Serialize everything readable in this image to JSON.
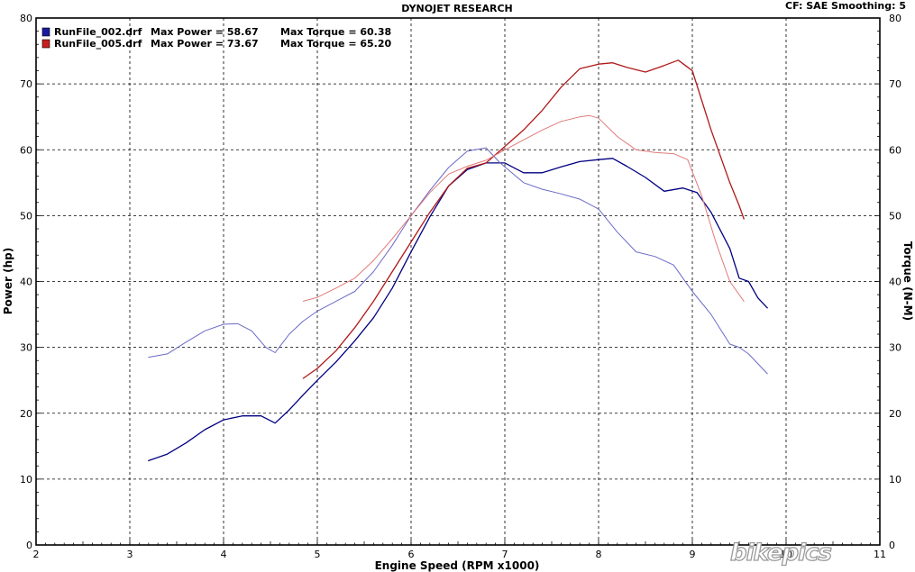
{
  "header": {
    "title": "DYNOJET RESEARCH",
    "settings": "CF: SAE  Smoothing: 5"
  },
  "colors": {
    "run1_power": "#000080",
    "run1_torque": "#6a6ac8",
    "run2_power": "#b01818",
    "run2_torque": "#e07a7a",
    "grid": "#000000",
    "frame": "#000000"
  },
  "watermark": "bikepics",
  "chart_data": {
    "type": "line",
    "xlabel": "Engine Speed (RPM x1000)",
    "ylabel": "Power (hp)",
    "y2label": "Torque (N-M)",
    "xlim": [
      2,
      11
    ],
    "ylim": [
      0,
      80
    ],
    "y2lim": [
      0,
      80
    ],
    "xticks": [
      2,
      3,
      4,
      5,
      6,
      7,
      8,
      9,
      10,
      11
    ],
    "yticks": [
      0,
      10,
      20,
      30,
      40,
      50,
      60,
      70,
      80
    ],
    "y2ticks": [
      0,
      10,
      20,
      30,
      40,
      50,
      60,
      70,
      80
    ],
    "grid": true,
    "legend_position": "top-left",
    "legend": [
      {
        "file": "RunFile_002.drf",
        "power_label": "Max Power = 58.67",
        "torque_label": "Max Torque = 60.38",
        "color": "#1a1aa0"
      },
      {
        "file": "RunFile_005.drf",
        "power_label": "Max Power = 73.67",
        "torque_label": "Max Torque = 65.20",
        "color": "#c82020"
      }
    ],
    "series": [
      {
        "name": "RunFile_002.drf Power",
        "axis": "left",
        "color": "#000080",
        "width": 1.3,
        "x": [
          3.2,
          3.4,
          3.6,
          3.8,
          4.0,
          4.2,
          4.4,
          4.55,
          4.7,
          4.85,
          5.0,
          5.2,
          5.4,
          5.6,
          5.8,
          6.0,
          6.2,
          6.4,
          6.6,
          6.8,
          7.0,
          7.2,
          7.4,
          7.6,
          7.8,
          8.0,
          8.15,
          8.3,
          8.5,
          8.7,
          8.9,
          9.05,
          9.2,
          9.4,
          9.5,
          9.6,
          9.7,
          9.8
        ],
        "y": [
          12.8,
          13.8,
          15.5,
          17.5,
          19.0,
          19.6,
          19.6,
          18.5,
          20.5,
          22.8,
          25.0,
          27.8,
          31.0,
          34.5,
          39.0,
          44.5,
          49.8,
          54.5,
          57.0,
          58.0,
          58.0,
          56.5,
          56.5,
          57.4,
          58.2,
          58.5,
          58.7,
          57.5,
          55.8,
          53.7,
          54.2,
          53.5,
          50.5,
          45.0,
          40.5,
          40.0,
          37.5,
          36.0
        ]
      },
      {
        "name": "RunFile_002.drf Torque",
        "axis": "right",
        "color": "#6a6ac8",
        "width": 1.0,
        "x": [
          3.2,
          3.4,
          3.6,
          3.8,
          4.0,
          4.15,
          4.3,
          4.45,
          4.55,
          4.7,
          4.85,
          5.0,
          5.2,
          5.4,
          5.6,
          5.8,
          6.0,
          6.2,
          6.4,
          6.6,
          6.8,
          6.95,
          7.2,
          7.4,
          7.6,
          7.8,
          8.0,
          8.2,
          8.4,
          8.6,
          8.8,
          9.0,
          9.2,
          9.4,
          9.5,
          9.6,
          9.7,
          9.8
        ],
        "y": [
          28.5,
          29.0,
          30.8,
          32.5,
          33.5,
          33.6,
          32.5,
          30.0,
          29.2,
          32.0,
          34.0,
          35.5,
          37.0,
          38.5,
          41.5,
          45.5,
          50.0,
          53.8,
          57.3,
          59.8,
          60.3,
          58.0,
          55.0,
          54.0,
          53.3,
          52.5,
          51.0,
          47.5,
          44.5,
          43.8,
          42.5,
          38.5,
          35.0,
          30.5,
          30.0,
          29.0,
          27.5,
          26.0
        ]
      },
      {
        "name": "RunFile_005.drf Power",
        "axis": "left",
        "color": "#b01818",
        "width": 1.3,
        "x": [
          4.85,
          5.0,
          5.2,
          5.4,
          5.6,
          5.8,
          6.0,
          6.2,
          6.4,
          6.6,
          6.8,
          7.0,
          7.2,
          7.4,
          7.6,
          7.8,
          8.0,
          8.15,
          8.3,
          8.5,
          8.7,
          8.85,
          9.0,
          9.2,
          9.4,
          9.5,
          9.55
        ],
        "y": [
          25.3,
          26.8,
          29.5,
          33.0,
          37.0,
          41.5,
          46.0,
          50.5,
          54.5,
          57.2,
          58.0,
          60.5,
          63.0,
          66.0,
          69.5,
          72.3,
          73.0,
          73.2,
          72.5,
          71.8,
          72.8,
          73.6,
          72.0,
          63.0,
          55.0,
          51.5,
          49.5
        ]
      },
      {
        "name": "RunFile_005.drf Torque",
        "axis": "right",
        "color": "#e07a7a",
        "width": 1.0,
        "x": [
          4.85,
          5.0,
          5.2,
          5.4,
          5.6,
          5.8,
          6.0,
          6.2,
          6.4,
          6.6,
          6.8,
          7.0,
          7.2,
          7.4,
          7.6,
          7.8,
          7.9,
          8.0,
          8.2,
          8.4,
          8.6,
          8.8,
          8.95,
          9.1,
          9.25,
          9.4,
          9.55
        ],
        "y": [
          37.0,
          37.6,
          39.0,
          40.5,
          43.2,
          46.5,
          50.0,
          53.5,
          56.3,
          57.5,
          58.4,
          60.0,
          61.5,
          63.0,
          64.3,
          65.0,
          65.2,
          64.8,
          62.0,
          60.0,
          59.6,
          59.4,
          58.5,
          53.0,
          46.0,
          40.0,
          37.0
        ]
      }
    ]
  }
}
